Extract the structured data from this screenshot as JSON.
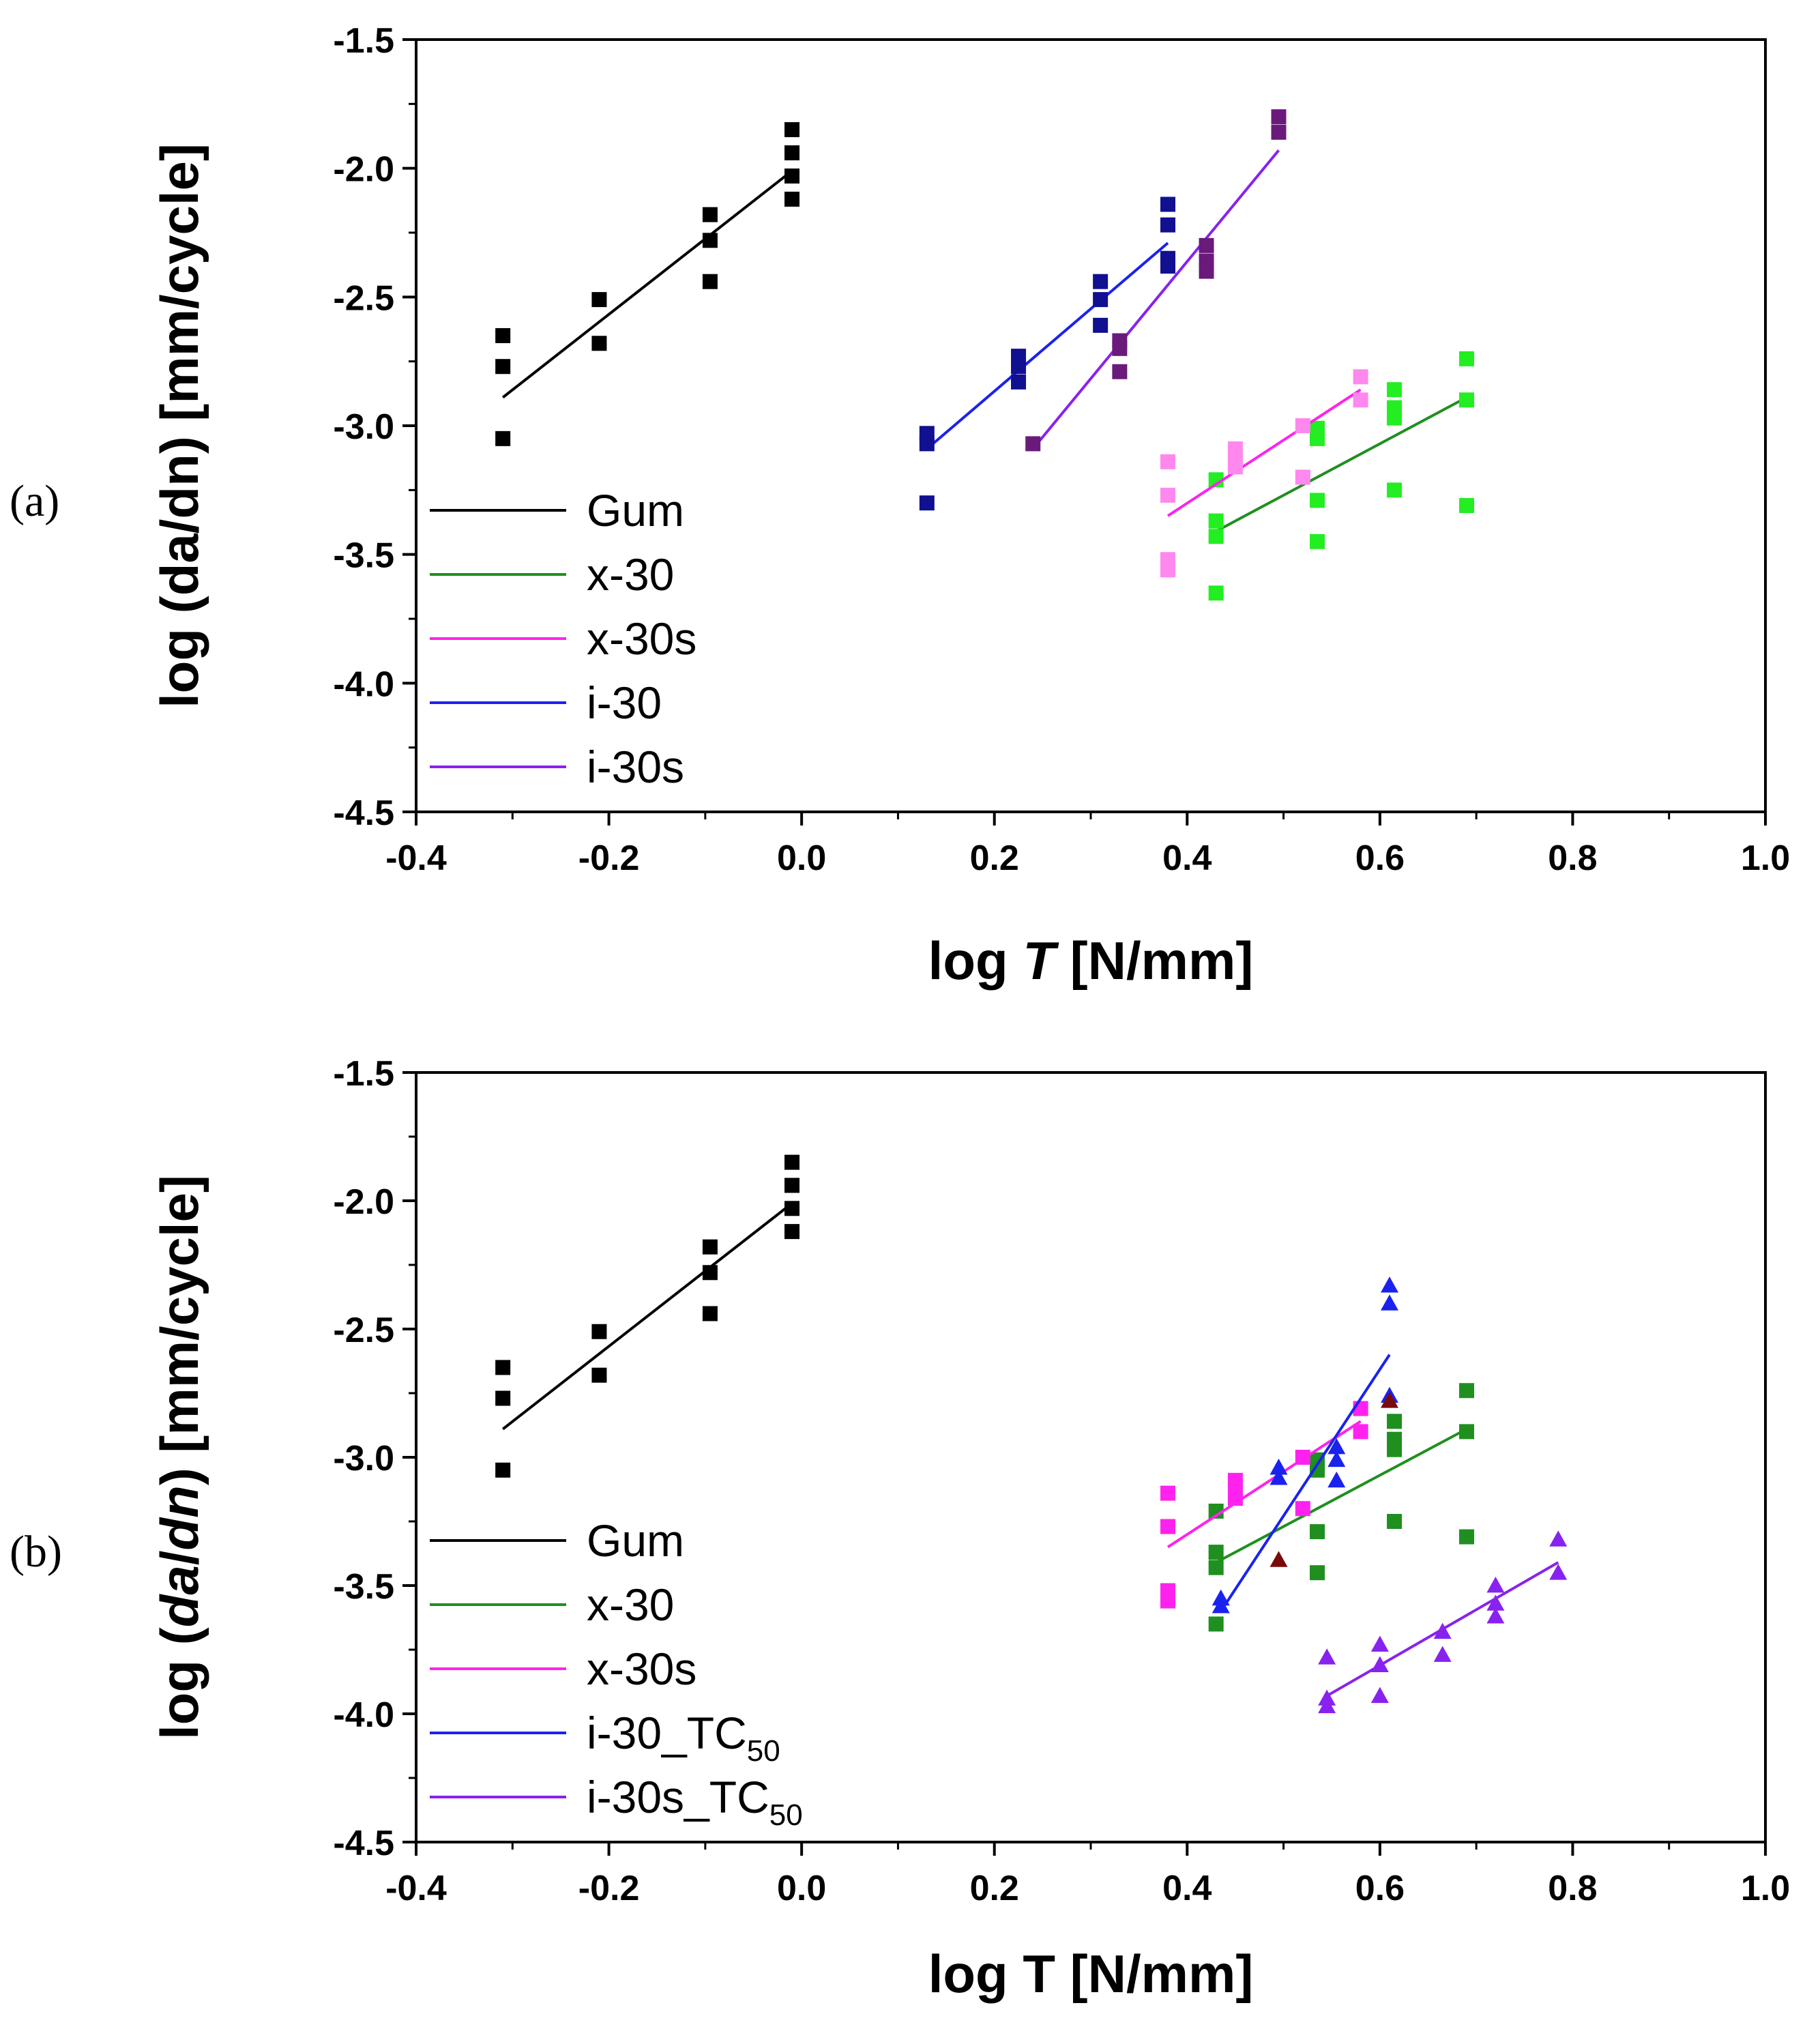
{
  "chart_data": [
    {
      "type": "scatter",
      "panel_label": "(a)",
      "xlabel": "log T [N/mm]",
      "xlabel_parts": [
        "log ",
        "T",
        " [N/mm]"
      ],
      "ylabel": "log (da/dn) [mm/cycle]",
      "ylabel_parts": [
        "log (",
        "da",
        "/",
        "dn",
        ") [mm/cycle]"
      ],
      "xlim": [
        -0.4,
        1.0
      ],
      "ylim": [
        -4.5,
        -1.5
      ],
      "xticks": [
        -0.4,
        -0.2,
        0.0,
        0.2,
        0.4,
        0.6,
        0.8,
        1.0
      ],
      "xtick_labels": [
        "-0.4",
        "-0.2",
        "0.0",
        "0.2",
        "0.4",
        "0.6",
        "0.8",
        "1.0"
      ],
      "yticks": [
        -4.5,
        -4.0,
        -3.5,
        -3.0,
        -2.5,
        -2.0,
        -1.5
      ],
      "ytick_labels": [
        "-4.5",
        "-4.0",
        "-3.5",
        "-3.0",
        "-2.5",
        "-2.0",
        "-1.5"
      ],
      "legend_position": "lower-left",
      "series": [
        {
          "name": "Gum",
          "line_color": "#000000",
          "marker": "square",
          "marker_color": "#000000",
          "points": [
            [
              -0.31,
              -2.65
            ],
            [
              -0.31,
              -2.77
            ],
            [
              -0.31,
              -3.05
            ],
            [
              -0.21,
              -2.51
            ],
            [
              -0.21,
              -2.68
            ],
            [
              -0.095,
              -2.18
            ],
            [
              -0.095,
              -2.28
            ],
            [
              -0.095,
              -2.44
            ],
            [
              -0.01,
              -1.85
            ],
            [
              -0.01,
              -1.94
            ],
            [
              -0.01,
              -2.03
            ],
            [
              -0.01,
              -2.12
            ]
          ],
          "fit": [
            [
              -0.31,
              -2.89
            ],
            [
              -0.01,
              -2.01
            ]
          ]
        },
        {
          "name": "x-30",
          "line_color": "#1f8f1f",
          "marker": "square",
          "marker_color": "#22ee22",
          "points": [
            [
              0.43,
              -3.21
            ],
            [
              0.43,
              -3.37
            ],
            [
              0.43,
              -3.43
            ],
            [
              0.43,
              -3.65
            ],
            [
              0.535,
              -3.01
            ],
            [
              0.535,
              -3.05
            ],
            [
              0.535,
              -3.29
            ],
            [
              0.535,
              -3.45
            ],
            [
              0.615,
              -2.86
            ],
            [
              0.615,
              -2.93
            ],
            [
              0.615,
              -2.97
            ],
            [
              0.615,
              -3.25
            ],
            [
              0.69,
              -2.74
            ],
            [
              0.69,
              -2.9
            ],
            [
              0.69,
              -3.31
            ]
          ],
          "fit": [
            [
              0.43,
              -3.41
            ],
            [
              0.69,
              -2.89
            ]
          ]
        },
        {
          "name": "x-30s",
          "line_color": "#ff22ee",
          "marker": "square",
          "marker_color": "#ff88ee",
          "points": [
            [
              0.38,
              -3.14
            ],
            [
              0.38,
              -3.27
            ],
            [
              0.38,
              -3.52
            ],
            [
              0.38,
              -3.56
            ],
            [
              0.45,
              -3.09
            ],
            [
              0.45,
              -3.13
            ],
            [
              0.45,
              -3.16
            ],
            [
              0.52,
              -3.0
            ],
            [
              0.52,
              -3.2
            ],
            [
              0.58,
              -2.81
            ],
            [
              0.58,
              -2.9
            ]
          ],
          "fit": [
            [
              0.38,
              -3.35
            ],
            [
              0.58,
              -2.86
            ]
          ]
        },
        {
          "name": "i-30",
          "line_color": "#1a22ee",
          "marker": "square",
          "marker_color": "#101090",
          "points": [
            [
              0.13,
              -3.03
            ],
            [
              0.13,
              -3.07
            ],
            [
              0.13,
              -3.3
            ],
            [
              0.225,
              -2.73
            ],
            [
              0.225,
              -2.77
            ],
            [
              0.225,
              -2.83
            ],
            [
              0.31,
              -2.44
            ],
            [
              0.31,
              -2.51
            ],
            [
              0.31,
              -2.61
            ],
            [
              0.38,
              -2.14
            ],
            [
              0.38,
              -2.22
            ],
            [
              0.38,
              -2.35
            ],
            [
              0.38,
              -2.38
            ]
          ],
          "fit": [
            [
              0.13,
              -3.09
            ],
            [
              0.38,
              -2.29
            ]
          ]
        },
        {
          "name": "i-30s",
          "line_color": "#8822ee",
          "marker": "square",
          "marker_color": "#6a1a7a",
          "points": [
            [
              0.24,
              -3.07
            ],
            [
              0.33,
              -2.67
            ],
            [
              0.33,
              -2.7
            ],
            [
              0.33,
              -2.79
            ],
            [
              0.42,
              -2.3
            ],
            [
              0.42,
              -2.36
            ],
            [
              0.42,
              -2.4
            ],
            [
              0.495,
              -1.8
            ],
            [
              0.495,
              -1.86
            ]
          ],
          "fit": [
            [
              0.24,
              -3.09
            ],
            [
              0.495,
              -1.93
            ]
          ]
        }
      ]
    },
    {
      "type": "scatter",
      "panel_label": "(b)",
      "xlabel": "log T [N/mm]",
      "xlabel_parts": [
        "log T [N/mm]"
      ],
      "ylabel": "log (da/dn) [mm/cycle]",
      "ylabel_parts": [
        "log (",
        "da",
        "/",
        "dn",
        ") [mm/cycle]"
      ],
      "xlim": [
        -0.4,
        1.0
      ],
      "ylim": [
        -4.5,
        -1.5
      ],
      "xticks": [
        -0.4,
        -0.2,
        0.0,
        0.2,
        0.4,
        0.6,
        0.8,
        1.0
      ],
      "xtick_labels": [
        "-0.4",
        "-0.2",
        "0.0",
        "0.2",
        "0.4",
        "0.6",
        "0.8",
        "1.0"
      ],
      "yticks": [
        -4.5,
        -4.0,
        -3.5,
        -3.0,
        -2.5,
        -2.0,
        -1.5
      ],
      "ytick_labels": [
        "-4.5",
        "-4.0",
        "-3.5",
        "-3.0",
        "-2.5",
        "-2.0",
        "-1.5"
      ],
      "legend_position": "lower-left",
      "series": [
        {
          "name": "Gum",
          "name_sub": "",
          "line_color": "#000000",
          "marker": "square",
          "marker_color": "#000000",
          "points": [
            [
              -0.31,
              -2.65
            ],
            [
              -0.31,
              -2.77
            ],
            [
              -0.31,
              -3.05
            ],
            [
              -0.21,
              -2.51
            ],
            [
              -0.21,
              -2.68
            ],
            [
              -0.095,
              -2.18
            ],
            [
              -0.095,
              -2.28
            ],
            [
              -0.095,
              -2.44
            ],
            [
              -0.01,
              -1.85
            ],
            [
              -0.01,
              -1.94
            ],
            [
              -0.01,
              -2.03
            ],
            [
              -0.01,
              -2.12
            ]
          ],
          "fit": [
            [
              -0.31,
              -2.89
            ],
            [
              -0.01,
              -2.01
            ]
          ]
        },
        {
          "name": "x-30",
          "name_sub": "",
          "line_color": "#1f8f1f",
          "marker": "square",
          "marker_color": "#1f8f1f",
          "points": [
            [
              0.43,
              -3.21
            ],
            [
              0.43,
              -3.37
            ],
            [
              0.43,
              -3.43
            ],
            [
              0.43,
              -3.65
            ],
            [
              0.535,
              -3.01
            ],
            [
              0.535,
              -3.05
            ],
            [
              0.535,
              -3.29
            ],
            [
              0.535,
              -3.45
            ],
            [
              0.615,
              -2.86
            ],
            [
              0.615,
              -2.93
            ],
            [
              0.615,
              -2.97
            ],
            [
              0.615,
              -3.25
            ],
            [
              0.69,
              -2.74
            ],
            [
              0.69,
              -2.9
            ],
            [
              0.69,
              -3.31
            ]
          ],
          "fit": [
            [
              0.43,
              -3.41
            ],
            [
              0.69,
              -2.89
            ]
          ]
        },
        {
          "name": "x-30s",
          "name_sub": "",
          "line_color": "#ff22ee",
          "marker": "square",
          "marker_color": "#ff22ee",
          "points": [
            [
              0.38,
              -3.14
            ],
            [
              0.38,
              -3.27
            ],
            [
              0.38,
              -3.52
            ],
            [
              0.38,
              -3.56
            ],
            [
              0.45,
              -3.09
            ],
            [
              0.45,
              -3.13
            ],
            [
              0.45,
              -3.16
            ],
            [
              0.52,
              -3.0
            ],
            [
              0.52,
              -3.2
            ],
            [
              0.58,
              -2.81
            ],
            [
              0.58,
              -2.9
            ]
          ],
          "fit": [
            [
              0.38,
              -3.35
            ],
            [
              0.58,
              -2.86
            ]
          ]
        },
        {
          "name": "i-30_TC",
          "name_sub": "50",
          "line_color": "#1a22ee",
          "marker": "triangle",
          "marker_color": "#1a22ee",
          "points": [
            [
              0.435,
              -3.55
            ],
            [
              0.435,
              -3.58
            ],
            [
              0.495,
              -3.04
            ],
            [
              0.495,
              -3.08
            ],
            [
              0.555,
              -2.96
            ],
            [
              0.555,
              -3.01
            ],
            [
              0.555,
              -3.09
            ],
            [
              0.61,
              -2.33
            ],
            [
              0.61,
              -2.4
            ],
            [
              0.61,
              -2.76
            ]
          ],
          "fit": [
            [
              0.435,
              -3.6
            ],
            [
              0.61,
              -2.6
            ]
          ]
        },
        {
          "name": "i-30_TC",
          "name_sub": "",
          "line_color": "",
          "marker": "triangle",
          "marker_color": "#7a0a0a",
          "in_legend": false,
          "points": [
            [
              0.495,
              -3.4
            ],
            [
              0.61,
              -2.78
            ]
          ],
          "fit": []
        },
        {
          "name": "i-30s_TC",
          "name_sub": "50",
          "line_color": "#8822ee",
          "marker": "triangle",
          "marker_color": "#8822ee",
          "points": [
            [
              0.545,
              -3.78
            ],
            [
              0.545,
              -3.94
            ],
            [
              0.545,
              -3.97
            ],
            [
              0.6,
              -3.73
            ],
            [
              0.6,
              -3.81
            ],
            [
              0.6,
              -3.93
            ],
            [
              0.665,
              -3.68
            ],
            [
              0.665,
              -3.77
            ],
            [
              0.72,
              -3.5
            ],
            [
              0.72,
              -3.57
            ],
            [
              0.72,
              -3.62
            ],
            [
              0.785,
              -3.32
            ],
            [
              0.785,
              -3.45
            ]
          ],
          "fit": [
            [
              0.545,
              -3.93
            ],
            [
              0.785,
              -3.41
            ]
          ]
        }
      ]
    }
  ]
}
